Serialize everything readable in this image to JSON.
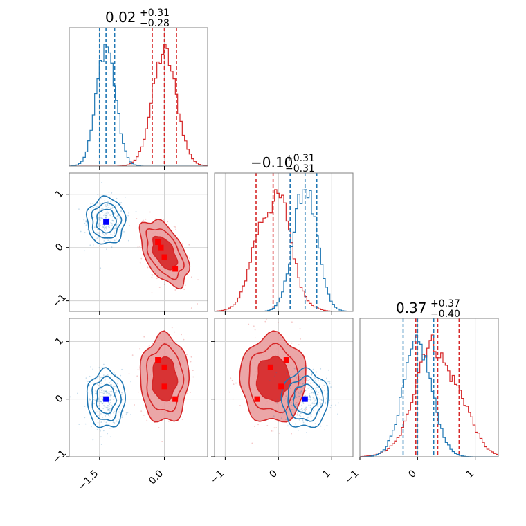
{
  "chart_data": {
    "type": "corner",
    "parameters": [
      {
        "index": 0,
        "range": [
          -2.2,
          1.0
        ],
        "ticks": [
          -1.5,
          0.0
        ],
        "tick_labels": [
          "−1.5",
          "0.0"
        ]
      },
      {
        "index": 1,
        "range": [
          -1.2,
          1.4
        ],
        "ticks": [
          -1,
          0,
          1
        ],
        "tick_labels": [
          "−1",
          "0",
          "1"
        ]
      },
      {
        "index": 2,
        "range": [
          -1.0,
          1.4
        ],
        "ticks": [
          -1,
          0,
          1
        ],
        "tick_labels": [
          "−1",
          "0",
          "1"
        ]
      }
    ],
    "titles": [
      {
        "median": "0.02",
        "plus": "+0.31",
        "minus": "−0.28"
      },
      {
        "median": "−0.10",
        "plus": "+0.31",
        "minus": "−0.31"
      },
      {
        "median": "0.37",
        "plus": "+0.37",
        "minus": "−0.40"
      }
    ],
    "colors": {
      "red": "#d62728",
      "blue": "#1f77b4",
      "red_fill_inner": "#d62728",
      "red_fill_outer": "#e99c9d",
      "marker_red": "#ff0000",
      "marker_blue": "#0000ff",
      "grid": "#d0d0d0"
    },
    "series": [
      {
        "color": "red",
        "mean": [
          0.0,
          -0.1,
          0.35
        ],
        "std": [
          0.28,
          0.31,
          0.38
        ],
        "corr": {
          "0-1": -0.5,
          "0-2": 0.0,
          "1-2": 0.0
        },
        "quantiles": [
          [
            -0.28,
            0.0,
            0.28
          ],
          [
            -0.42,
            -0.1,
            0.22
          ],
          [
            -0.03,
            0.35,
            0.72
          ]
        ],
        "filled": true
      },
      {
        "color": "blue",
        "mean": [
          -1.35,
          0.5,
          0.0
        ],
        "std": [
          0.22,
          0.22,
          0.25
        ],
        "corr": {
          "0-1": 0.0,
          "0-2": 0.0,
          "1-2": 0.0
        },
        "quantiles": [
          [
            -1.5,
            -1.35,
            -1.15
          ],
          [
            0.22,
            0.5,
            0.72
          ],
          [
            -0.25,
            0.0,
            0.28
          ]
        ],
        "filled": false
      }
    ],
    "markers": {
      "red": {
        "1-0": [
          [
            -0.15,
            0.1
          ],
          [
            0.0,
            -0.18
          ],
          [
            0.25,
            -0.4
          ],
          [
            -0.08,
            0.0
          ]
        ],
        "2-0": [
          [
            -0.15,
            0.68
          ],
          [
            0.0,
            0.55
          ],
          [
            0.25,
            0.0
          ],
          [
            0.0,
            0.22
          ]
        ],
        "2-1": [
          [
            -0.4,
            0.0
          ],
          [
            -0.15,
            0.55
          ],
          [
            0.15,
            0.68
          ],
          [
            0.05,
            0.22
          ]
        ]
      },
      "blue": {
        "1-0": [
          [
            -1.35,
            0.48
          ]
        ],
        "2-0": [
          [
            -1.35,
            0.0
          ]
        ],
        "2-1": [
          [
            0.5,
            0.0
          ]
        ]
      }
    },
    "grid": true
  }
}
